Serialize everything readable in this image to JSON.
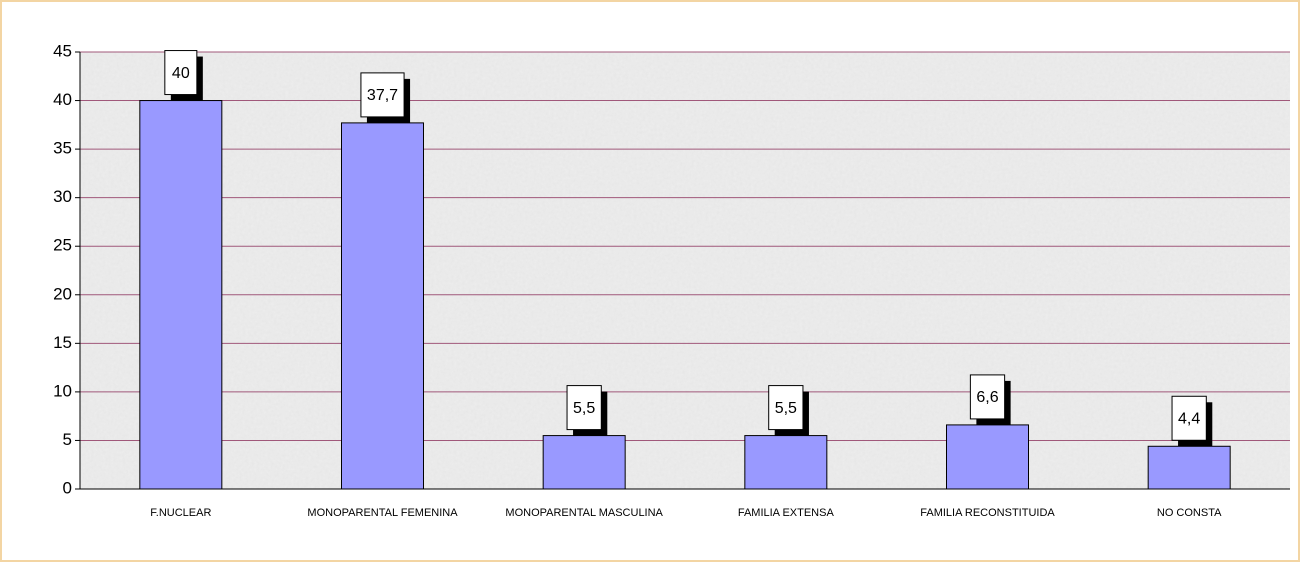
{
  "chart_data": {
    "type": "bar",
    "categories": [
      "F.NUCLEAR",
      "MONOPARENTAL FEMENINA",
      "MONOPARENTAL MASCULINA",
      "FAMILIA EXTENSA",
      "FAMILIA RECONSTITUIDA",
      "NO CONSTA"
    ],
    "values": [
      40,
      37.7,
      5.5,
      5.5,
      6.6,
      4.4
    ],
    "value_labels": [
      "40",
      "37,7",
      "5,5",
      "5,5",
      "6,6",
      "4,4"
    ],
    "color": "#9999ff",
    "ylim": [
      0,
      45
    ],
    "yticks": [
      0,
      5,
      10,
      15,
      20,
      25,
      30,
      35,
      40,
      45
    ],
    "grid": true
  }
}
